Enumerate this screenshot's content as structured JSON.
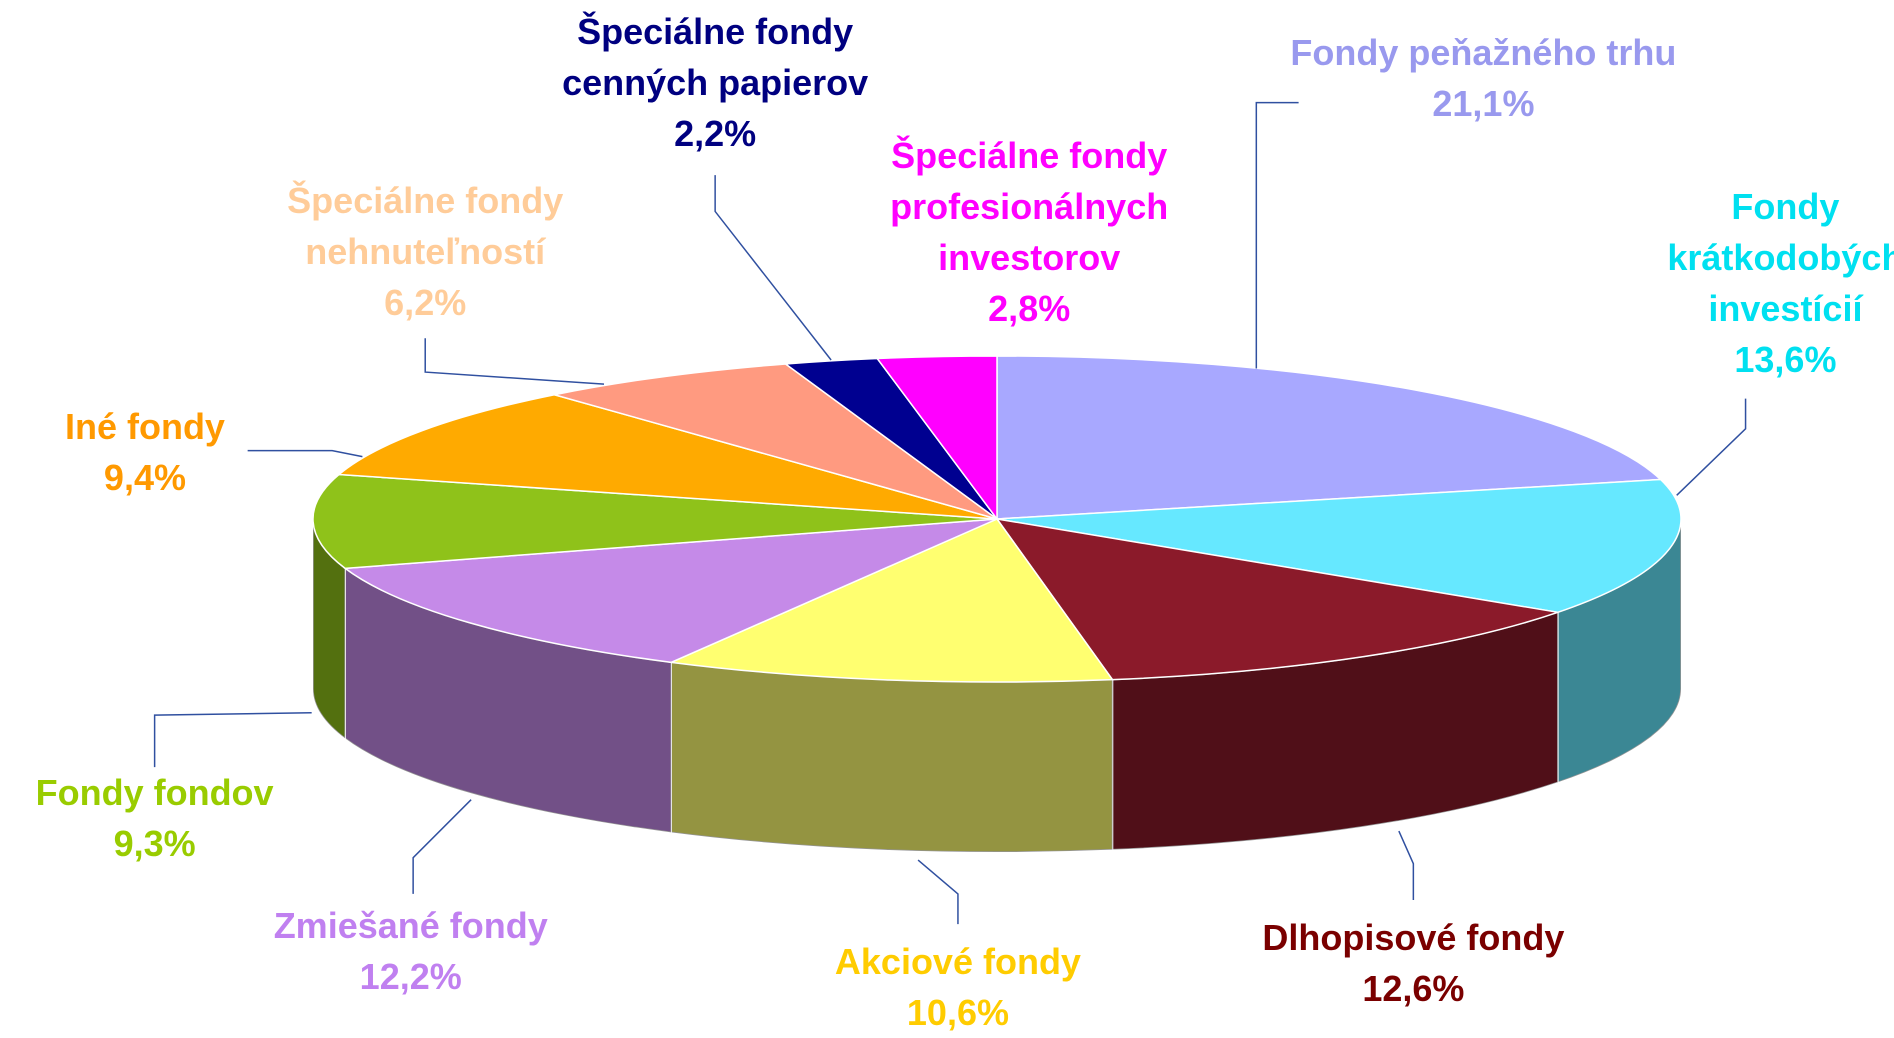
{
  "chart_data": {
    "type": "pie",
    "categories": [
      "Fondy peňažného trhu",
      "Fondy krátkodobých investícií",
      "Dlhopisové fondy",
      "Akciové fondy",
      "Zmiešané fondy",
      "Fondy fondov",
      "Iné fondy",
      "Špeciálne fondy nehnuteľností",
      "Špeciálne fondy cenných papierov",
      "Špeciálne fondy profesionálnych investorov"
    ],
    "values": [
      21.1,
      13.6,
      12.6,
      10.6,
      12.2,
      9.3,
      9.4,
      6.2,
      2.2,
      2.8
    ],
    "value_labels": [
      "21,1%",
      "13,6%",
      "12,6%",
      "10,6%",
      "12,2%",
      "9,3%",
      "9,4%",
      "6,2%",
      "2,2%",
      "2,8%"
    ],
    "colors": [
      "#a8a8ff",
      "#66e8ff",
      "#8b1a2a",
      "#ffff70",
      "#c58ae8",
      "#8fc21a",
      "#ffaa00",
      "#ff9a80",
      "#000090",
      "#ff00ff"
    ],
    "label_colors": [
      "#9999ee",
      "#00e0f0",
      "#7a0000",
      "#ffcc00",
      "#c080f0",
      "#99cc00",
      "#ff9900",
      "#ffcc99",
      "#000080",
      "#ff00ff"
    ]
  }
}
